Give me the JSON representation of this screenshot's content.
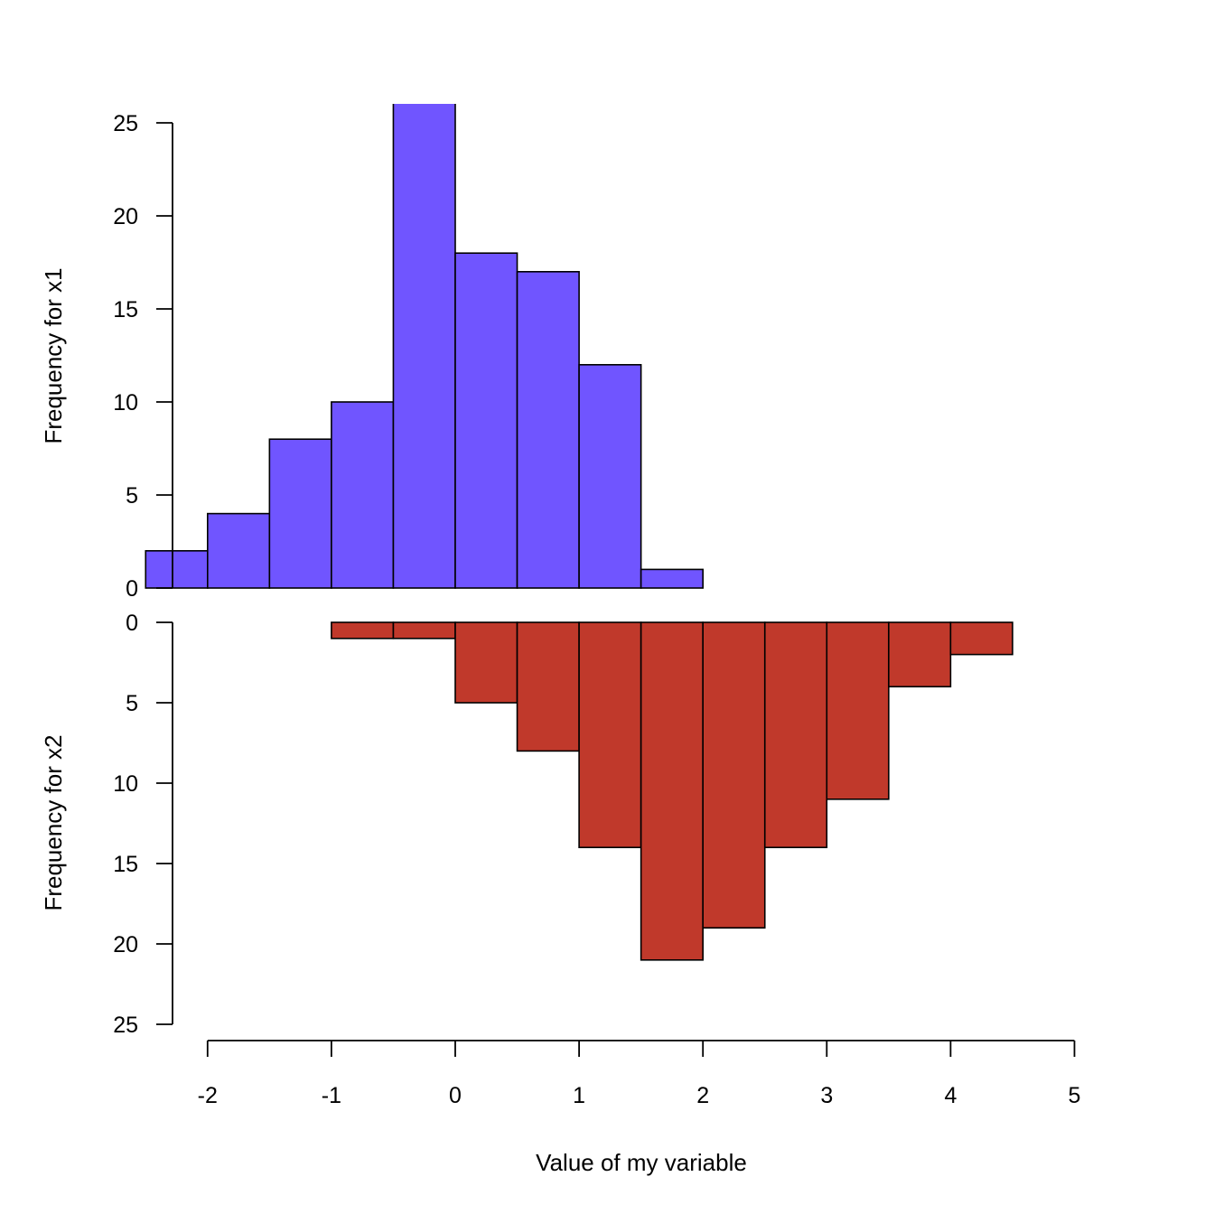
{
  "chart_data": {
    "type": "bar",
    "xlabel": "Value of my variable",
    "xlim": [
      -2,
      5
    ],
    "xticks": [
      -2,
      -1,
      0,
      1,
      2,
      3,
      4,
      5
    ],
    "xtick_labels": [
      "-2",
      "-1",
      "0",
      "1",
      "2",
      "3",
      "4",
      "5"
    ],
    "series": [
      {
        "name": "x1",
        "ylabel": "Frequency for x1",
        "orientation": "up",
        "color": "#7055FF",
        "ylim": [
          0,
          25
        ],
        "yticks": [
          0,
          5,
          10,
          15,
          20,
          25
        ],
        "ytick_labels": [
          "0",
          "5",
          "10",
          "15",
          "20",
          "25"
        ],
        "bins": [
          {
            "from": -2.5,
            "to": -2.0,
            "count": 2
          },
          {
            "from": -2.0,
            "to": -1.5,
            "count": 4
          },
          {
            "from": -1.5,
            "to": -1.0,
            "count": 8
          },
          {
            "from": -1.0,
            "to": -0.5,
            "count": 10
          },
          {
            "from": -0.5,
            "to": 0.0,
            "count": 27
          },
          {
            "from": 0.0,
            "to": 0.5,
            "count": 18
          },
          {
            "from": 0.5,
            "to": 1.0,
            "count": 17
          },
          {
            "from": 1.0,
            "to": 1.5,
            "count": 12
          },
          {
            "from": 1.5,
            "to": 2.0,
            "count": 1
          }
        ]
      },
      {
        "name": "x2",
        "ylabel": "Frequency for x2",
        "orientation": "down",
        "color": "#C0392B",
        "ylim": [
          0,
          25
        ],
        "yticks": [
          0,
          5,
          10,
          15,
          20,
          25
        ],
        "ytick_labels": [
          "0",
          "5",
          "10",
          "15",
          "20",
          "25"
        ],
        "bins": [
          {
            "from": -1.0,
            "to": -0.5,
            "count": 1
          },
          {
            "from": -0.5,
            "to": 0.0,
            "count": 1
          },
          {
            "from": 0.0,
            "to": 0.5,
            "count": 5
          },
          {
            "from": 0.5,
            "to": 1.0,
            "count": 8
          },
          {
            "from": 1.0,
            "to": 1.5,
            "count": 14
          },
          {
            "from": 1.5,
            "to": 2.0,
            "count": 21
          },
          {
            "from": 2.0,
            "to": 2.5,
            "count": 19
          },
          {
            "from": 2.5,
            "to": 3.0,
            "count": 14
          },
          {
            "from": 3.0,
            "to": 3.5,
            "count": 11
          },
          {
            "from": 3.5,
            "to": 4.0,
            "count": 4
          },
          {
            "from": 4.0,
            "to": 4.5,
            "count": 2
          }
        ]
      }
    ]
  }
}
